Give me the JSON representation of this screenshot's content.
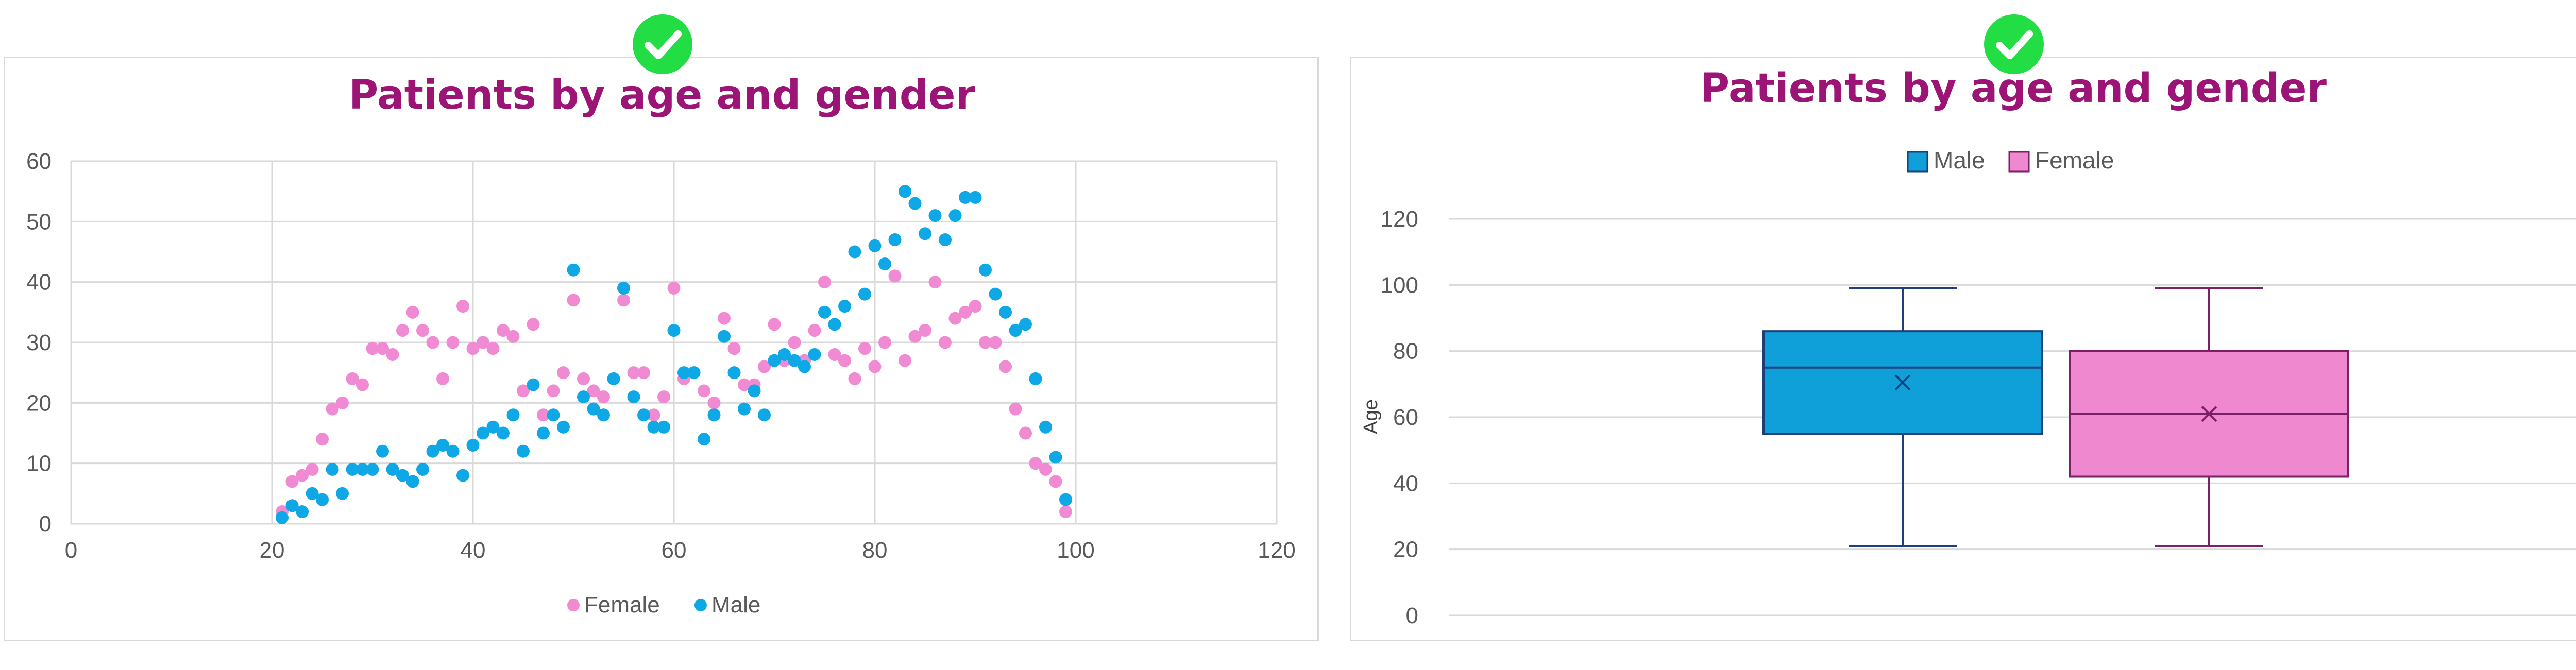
{
  "checks": {
    "left_icon": "check-circle-icon",
    "right_icon": "check-circle-icon",
    "color": "#22dd44"
  },
  "colors": {
    "female": "#f08bd3",
    "male": "#0fa8e6",
    "title": "#9b1476",
    "axis_text": "#595959",
    "grid": "#d9d9d9",
    "male_box_fill": "#0f9fd9",
    "male_box_edge": "#1f3f7a",
    "female_box_fill": "#f088cf",
    "female_box_edge": "#7a1f6a"
  },
  "chart_data": [
    {
      "type": "scatter",
      "title": "Patients by age and gender",
      "xlim": [
        0,
        120
      ],
      "ylim": [
        0,
        60
      ],
      "x_ticks": [
        0,
        20,
        40,
        60,
        80,
        100,
        120
      ],
      "y_ticks": [
        0,
        10,
        20,
        30,
        40,
        50,
        60
      ],
      "grid": true,
      "legend_position": "bottom",
      "series": [
        {
          "name": "Female",
          "color": "#f08bd3",
          "points": [
            [
              21,
              2
            ],
            [
              22,
              7
            ],
            [
              23,
              8
            ],
            [
              24,
              9
            ],
            [
              25,
              14
            ],
            [
              26,
              19
            ],
            [
              27,
              20
            ],
            [
              28,
              24
            ],
            [
              29,
              23
            ],
            [
              30,
              29
            ],
            [
              31,
              29
            ],
            [
              32,
              28
            ],
            [
              33,
              32
            ],
            [
              34,
              35
            ],
            [
              35,
              32
            ],
            [
              36,
              30
            ],
            [
              37,
              24
            ],
            [
              38,
              30
            ],
            [
              39,
              36
            ],
            [
              40,
              29
            ],
            [
              41,
              30
            ],
            [
              42,
              29
            ],
            [
              43,
              32
            ],
            [
              44,
              31
            ],
            [
              45,
              22
            ],
            [
              46,
              33
            ],
            [
              47,
              18
            ],
            [
              48,
              22
            ],
            [
              49,
              25
            ],
            [
              50,
              37
            ],
            [
              51,
              24
            ],
            [
              52,
              22
            ],
            [
              53,
              21
            ],
            [
              55,
              37
            ],
            [
              56,
              25
            ],
            [
              57,
              25
            ],
            [
              58,
              18
            ],
            [
              59,
              21
            ],
            [
              60,
              39
            ],
            [
              61,
              24
            ],
            [
              62,
              25
            ],
            [
              63,
              22
            ],
            [
              64,
              20
            ],
            [
              65,
              34
            ],
            [
              66,
              29
            ],
            [
              67,
              23
            ],
            [
              68,
              23
            ],
            [
              69,
              26
            ],
            [
              70,
              33
            ],
            [
              71,
              27
            ],
            [
              72,
              30
            ],
            [
              73,
              27
            ],
            [
              74,
              32
            ],
            [
              75,
              40
            ],
            [
              76,
              28
            ],
            [
              77,
              27
            ],
            [
              78,
              24
            ],
            [
              79,
              29
            ],
            [
              80,
              26
            ],
            [
              81,
              30
            ],
            [
              82,
              41
            ],
            [
              83,
              27
            ],
            [
              84,
              31
            ],
            [
              85,
              32
            ],
            [
              86,
              40
            ],
            [
              87,
              30
            ],
            [
              88,
              34
            ],
            [
              89,
              35
            ],
            [
              90,
              36
            ],
            [
              91,
              30
            ],
            [
              92,
              30
            ],
            [
              93,
              26
            ],
            [
              94,
              19
            ],
            [
              95,
              15
            ],
            [
              96,
              10
            ],
            [
              97,
              9
            ],
            [
              98,
              7
            ],
            [
              99,
              2
            ]
          ]
        },
        {
          "name": "Male",
          "color": "#0fa8e6",
          "points": [
            [
              21,
              1
            ],
            [
              22,
              3
            ],
            [
              23,
              2
            ],
            [
              24,
              5
            ],
            [
              25,
              4
            ],
            [
              26,
              9
            ],
            [
              27,
              5
            ],
            [
              28,
              9
            ],
            [
              29,
              9
            ],
            [
              30,
              9
            ],
            [
              31,
              12
            ],
            [
              32,
              9
            ],
            [
              33,
              8
            ],
            [
              34,
              7
            ],
            [
              35,
              9
            ],
            [
              36,
              12
            ],
            [
              37,
              13
            ],
            [
              38,
              12
            ],
            [
              39,
              8
            ],
            [
              40,
              13
            ],
            [
              41,
              15
            ],
            [
              42,
              16
            ],
            [
              43,
              15
            ],
            [
              44,
              18
            ],
            [
              45,
              12
            ],
            [
              46,
              23
            ],
            [
              47,
              15
            ],
            [
              48,
              18
            ],
            [
              49,
              16
            ],
            [
              50,
              42
            ],
            [
              51,
              21
            ],
            [
              52,
              19
            ],
            [
              53,
              18
            ],
            [
              54,
              24
            ],
            [
              55,
              39
            ],
            [
              56,
              21
            ],
            [
              57,
              18
            ],
            [
              58,
              16
            ],
            [
              59,
              16
            ],
            [
              60,
              32
            ],
            [
              61,
              25
            ],
            [
              62,
              25
            ],
            [
              63,
              14
            ],
            [
              64,
              18
            ],
            [
              65,
              31
            ],
            [
              66,
              25
            ],
            [
              67,
              19
            ],
            [
              68,
              22
            ],
            [
              69,
              18
            ],
            [
              70,
              27
            ],
            [
              71,
              28
            ],
            [
              72,
              27
            ],
            [
              73,
              26
            ],
            [
              74,
              28
            ],
            [
              75,
              35
            ],
            [
              76,
              33
            ],
            [
              77,
              36
            ],
            [
              78,
              45
            ],
            [
              79,
              38
            ],
            [
              80,
              46
            ],
            [
              81,
              43
            ],
            [
              82,
              47
            ],
            [
              83,
              55
            ],
            [
              84,
              53
            ],
            [
              85,
              48
            ],
            [
              86,
              51
            ],
            [
              87,
              47
            ],
            [
              88,
              51
            ],
            [
              89,
              54
            ],
            [
              90,
              54
            ],
            [
              91,
              42
            ],
            [
              92,
              38
            ],
            [
              93,
              35
            ],
            [
              94,
              32
            ],
            [
              95,
              33
            ],
            [
              96,
              24
            ],
            [
              97,
              16
            ],
            [
              98,
              11
            ],
            [
              99,
              4
            ]
          ]
        }
      ]
    },
    {
      "type": "box",
      "title": "Patients by age and gender",
      "ylabel": "Age",
      "ylim": [
        0,
        120
      ],
      "y_ticks": [
        0,
        20,
        40,
        60,
        80,
        100,
        120
      ],
      "grid": true,
      "legend_position": "top",
      "series": [
        {
          "name": "Male",
          "min": 21,
          "q1": 55,
          "median": 75,
          "q3": 86,
          "max": 99,
          "mean": 70.5
        },
        {
          "name": "Female",
          "min": 21,
          "q1": 42,
          "median": 61,
          "q3": 80,
          "max": 99,
          "mean": 61
        }
      ]
    }
  ]
}
